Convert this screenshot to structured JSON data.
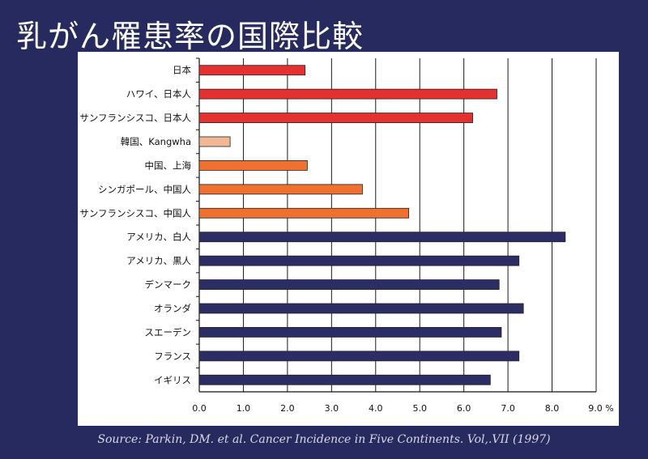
{
  "title": "乳がん罹患率の国際比較",
  "source": "Source: Parkin, DM. et al. Cancer Incidence in Five Continents. Vol,.VII (1997)",
  "chart_data": {
    "type": "bar",
    "orientation": "horizontal",
    "title": "乳がん罹患率の国際比較",
    "xlabel": "",
    "ylabel": "",
    "xlim": [
      0,
      9.0
    ],
    "ticks": [
      "0.0",
      "1.0",
      "2.0",
      "3.0",
      "4.0",
      "5.0",
      "6.0",
      "7.0",
      "8.0",
      "9.0 %"
    ],
    "grid": true,
    "legend": "none",
    "categories": [
      "日本",
      "ハワイ、日本人",
      "サンフランシスコ、日本人",
      "韓国、Kangwha",
      "中国、上海",
      "シンガポール、中国人",
      "サンフランシスコ、中国人",
      "アメリカ、白人",
      "アメリカ、黒人",
      "デンマーク",
      "オランダ",
      "スエーデン",
      "フランス",
      "イギリス"
    ],
    "values": [
      2.4,
      6.75,
      6.2,
      0.7,
      2.45,
      3.7,
      4.75,
      8.3,
      7.25,
      6.8,
      7.35,
      6.85,
      7.25,
      6.6
    ],
    "colors": [
      "#e53030",
      "#e53030",
      "#e53030",
      "#f2b896",
      "#f07030",
      "#f07030",
      "#f07030",
      "#2d2d66",
      "#2d2d66",
      "#2d2d66",
      "#2d2d66",
      "#2d2d66",
      "#2d2d66",
      "#2d2d66"
    ]
  }
}
